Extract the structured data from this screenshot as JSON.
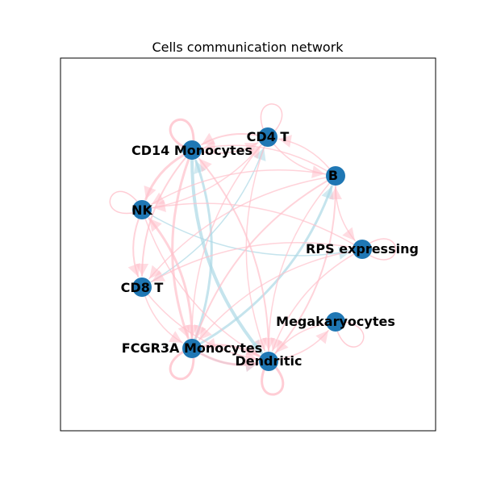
{
  "title": "Cells communication network",
  "colors": {
    "node": "#1f77b4",
    "edge_pink": "#ffc0cb",
    "edge_blue": "#add8e6",
    "frame": "#000000",
    "background": "#ffffff"
  },
  "nodes": [
    {
      "id": "cd4",
      "label": "CD4 T"
    },
    {
      "id": "b",
      "label": "B"
    },
    {
      "id": "rps",
      "label": "RPS expressing"
    },
    {
      "id": "mega",
      "label": "Megakaryocytes"
    },
    {
      "id": "dend",
      "label": "Dendritic"
    },
    {
      "id": "fcgr",
      "label": "FCGR3A Monocytes"
    },
    {
      "id": "cd8",
      "label": "CD8 T"
    },
    {
      "id": "nk",
      "label": "NK"
    },
    {
      "id": "cd14",
      "label": "CD14 Monocytes"
    }
  ],
  "edges": [
    {
      "s": "cd14",
      "t": "cd14",
      "c": "pink",
      "w": 3
    },
    {
      "s": "cd4",
      "t": "cd4",
      "c": "pink",
      "w": 1.5
    },
    {
      "s": "nk",
      "t": "nk",
      "c": "pink",
      "w": 1.5
    },
    {
      "s": "fcgr",
      "t": "fcgr",
      "c": "pink",
      "w": 3
    },
    {
      "s": "dend",
      "t": "dend",
      "c": "pink",
      "w": 3
    },
    {
      "s": "mega",
      "t": "mega",
      "c": "pink",
      "w": 1.5
    },
    {
      "s": "rps",
      "t": "rps",
      "c": "pink",
      "w": 1.5
    },
    {
      "s": "cd14",
      "t": "dend",
      "c": "blue",
      "w": 4
    },
    {
      "s": "fcgr",
      "t": "cd14",
      "c": "blue",
      "w": 3
    },
    {
      "s": "fcgr",
      "t": "b",
      "c": "blue",
      "w": 3
    },
    {
      "s": "nk",
      "t": "rps",
      "c": "blue",
      "w": 1.5
    },
    {
      "s": "fcgr",
      "t": "dend",
      "c": "blue",
      "w": 2
    },
    {
      "s": "cd8",
      "t": "cd4",
      "c": "blue",
      "w": 1.5
    },
    {
      "s": "cd14",
      "t": "fcgr",
      "c": "pink",
      "w": 3
    },
    {
      "s": "fcgr",
      "t": "nk",
      "c": "pink",
      "w": 3
    },
    {
      "s": "cd14",
      "t": "nk",
      "c": "pink",
      "w": 3
    },
    {
      "s": "nk",
      "t": "cd8",
      "c": "pink",
      "w": 2
    },
    {
      "s": "cd14",
      "t": "cd8",
      "c": "pink",
      "w": 2
    },
    {
      "s": "dend",
      "t": "fcgr",
      "c": "pink",
      "w": 3
    },
    {
      "s": "fcgr",
      "t": "dend",
      "c": "pink",
      "w": 3
    },
    {
      "s": "dend",
      "t": "cd14",
      "c": "pink",
      "w": 2
    },
    {
      "s": "b",
      "t": "fcgr",
      "c": "pink",
      "w": 2
    },
    {
      "s": "b",
      "t": "dend",
      "c": "pink",
      "w": 1.5
    },
    {
      "s": "rps",
      "t": "dend",
      "c": "pink",
      "w": 1.5
    },
    {
      "s": "rps",
      "t": "fcgr",
      "c": "pink",
      "w": 1.5
    },
    {
      "s": "cd4",
      "t": "fcgr",
      "c": "pink",
      "w": 1.5
    },
    {
      "s": "cd4",
      "t": "dend",
      "c": "pink",
      "w": 1.5
    },
    {
      "s": "cd4",
      "t": "cd14",
      "c": "pink",
      "w": 2
    },
    {
      "s": "b",
      "t": "cd14",
      "c": "pink",
      "w": 1.5
    },
    {
      "s": "b",
      "t": "cd4",
      "c": "pink",
      "w": 1.5
    },
    {
      "s": "cd14",
      "t": "cd4",
      "c": "pink",
      "w": 1.5
    },
    {
      "s": "nk",
      "t": "cd4",
      "c": "pink",
      "w": 1.5
    },
    {
      "s": "b",
      "t": "rps",
      "c": "pink",
      "w": 1.5
    },
    {
      "s": "mega",
      "t": "dend",
      "c": "pink",
      "w": 1.5
    },
    {
      "s": "dend",
      "t": "mega",
      "c": "pink",
      "w": 1.5
    },
    {
      "s": "cd8",
      "t": "fcgr",
      "c": "pink",
      "w": 1.5
    },
    {
      "s": "cd8",
      "t": "dend",
      "c": "pink",
      "w": 1.5
    },
    {
      "s": "nk",
      "t": "dend",
      "c": "pink",
      "w": 1.5
    },
    {
      "s": "rps",
      "t": "cd8",
      "c": "pink",
      "w": 1.5
    },
    {
      "s": "rps",
      "t": "nk",
      "c": "pink",
      "w": 1.5
    },
    {
      "s": "b",
      "t": "nk",
      "c": "pink",
      "w": 1.5
    },
    {
      "s": "b",
      "t": "cd8",
      "c": "pink",
      "w": 1.5
    },
    {
      "s": "cd4",
      "t": "b",
      "c": "pink",
      "w": 1.5
    },
    {
      "s": "dend",
      "t": "b",
      "c": "pink",
      "w": 2
    }
  ]
}
